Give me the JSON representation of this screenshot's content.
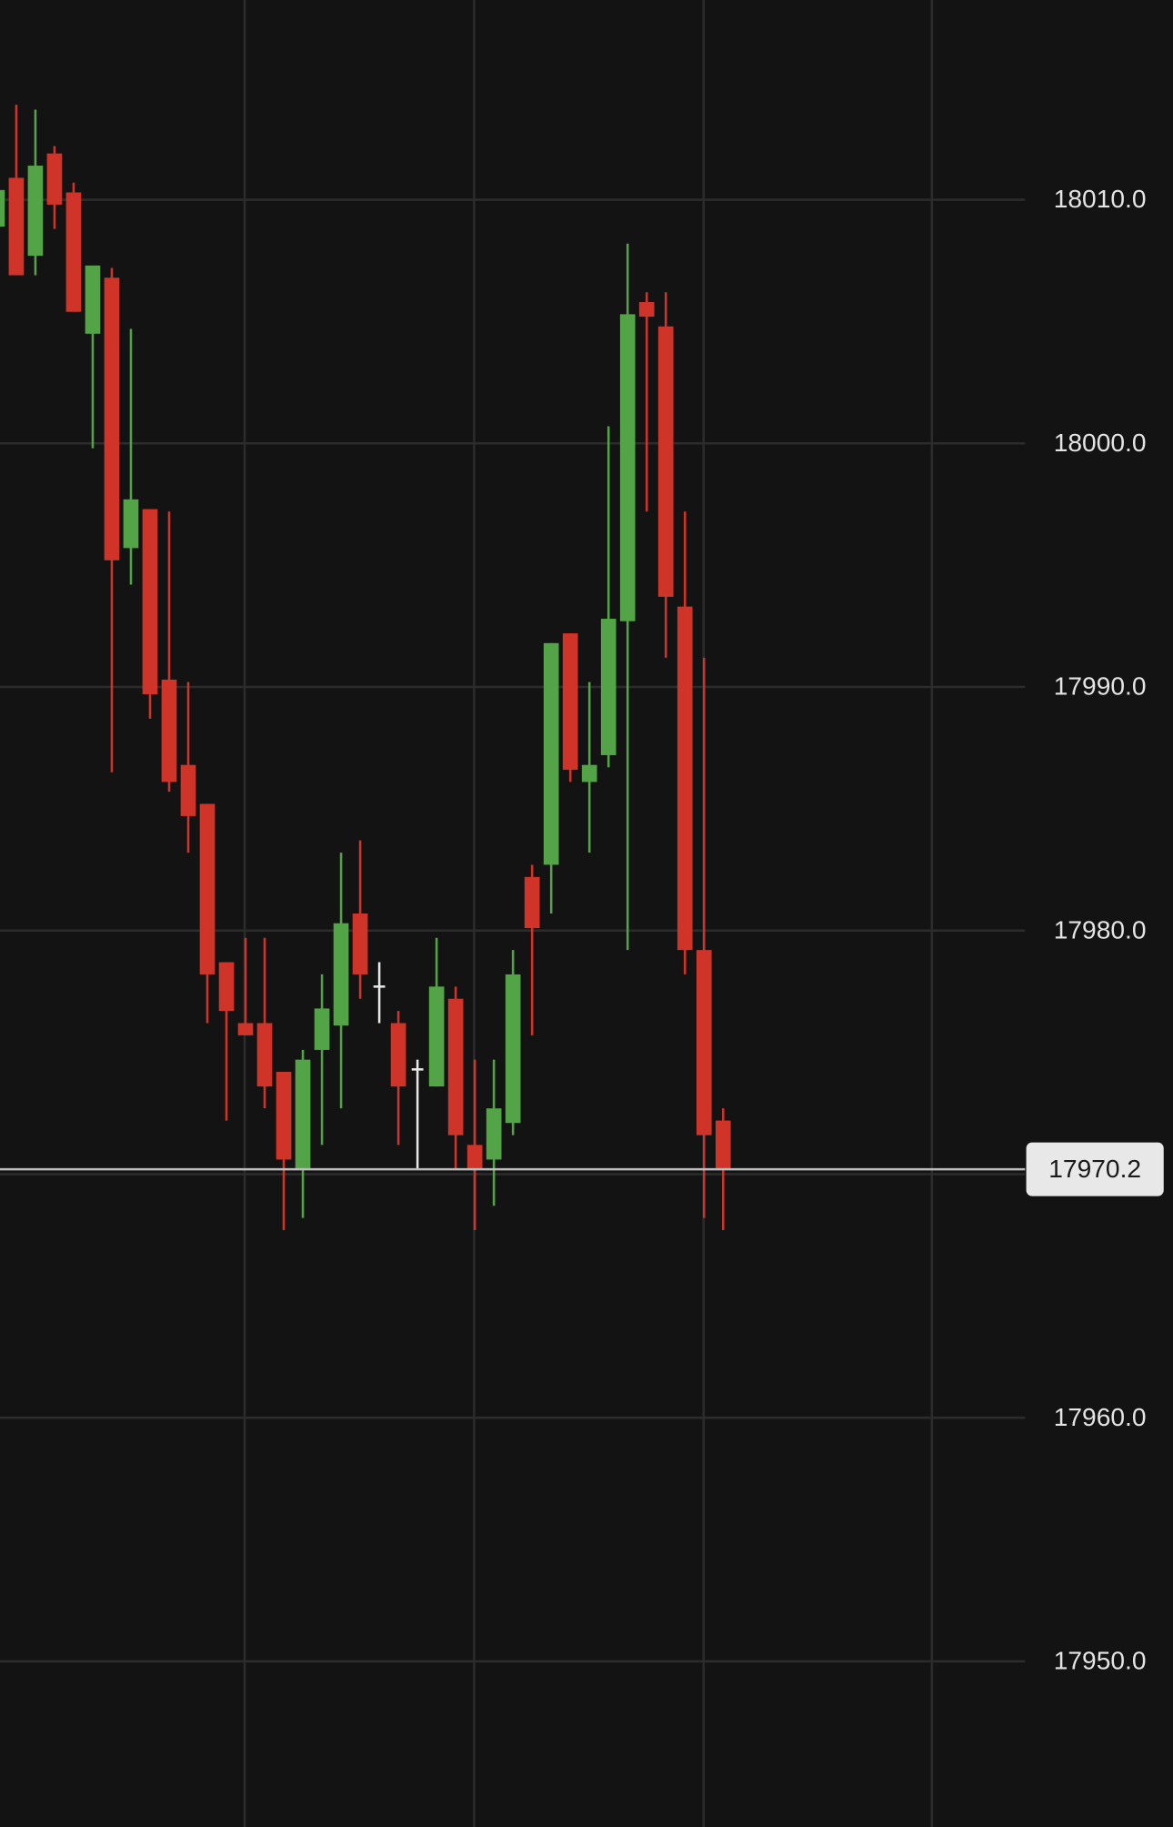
{
  "chart_data": {
    "type": "candlestick",
    "up_color": "#53a447",
    "down_color": "#d03429",
    "flat_color": "#e6e6e6",
    "grid": true,
    "ylim": [
      17943.2,
      18018.2
    ],
    "yticks": [
      {
        "value": 17950,
        "label": "17950.0"
      },
      {
        "value": 17960,
        "label": "17960.0"
      },
      {
        "value": 17970,
        "label": "17970.0"
      },
      {
        "value": 17980,
        "label": "17980.0"
      },
      {
        "value": 17990,
        "label": "17990.0"
      },
      {
        "value": 18000,
        "label": "18000.0"
      },
      {
        "value": 18010,
        "label": "18010.0"
      }
    ],
    "last_value": 17970.2,
    "open": [
      18008.9,
      18010.9,
      18007.7,
      18011.9,
      18010.3,
      18004.5,
      18006.8,
      17995.7,
      17997.3,
      17990.3,
      17986.8,
      17985.2,
      17978.7,
      17976.2,
      17976.2,
      17974.2,
      17970.2,
      17975.1,
      17976.1,
      17980.7,
      17977.7,
      17976.2,
      17974.3,
      17973.6,
      17977.2,
      17971.2,
      17970.6,
      17972.1,
      17982.2,
      17982.7,
      17992.2,
      17986.1,
      17987.2,
      17992.7,
      18005.8,
      18004.8,
      17993.3,
      17979.2,
      17972.2
    ],
    "high": [
      18011.0,
      18013.9,
      18013.7,
      18012.2,
      18010.7,
      18007.3,
      18007.2,
      18004.7,
      17997.3,
      17997.2,
      17990.2,
      17985.2,
      17978.7,
      17979.7,
      17979.7,
      17974.2,
      17975.1,
      17978.2,
      17983.2,
      17983.7,
      17978.7,
      17976.7,
      17974.7,
      17979.7,
      17977.7,
      17974.7,
      17974.7,
      17979.2,
      17982.7,
      17991.8,
      17992.2,
      17990.2,
      18000.7,
      18008.2,
      18006.2,
      18006.2,
      17997.2,
      17991.2,
      17972.7
    ],
    "low": [
      18008.5,
      18006.9,
      18006.9,
      18008.8,
      18005.4,
      17999.8,
      17986.5,
      17994.2,
      17988.7,
      17985.7,
      17983.2,
      17976.2,
      17972.2,
      17975.7,
      17972.7,
      17967.7,
      17968.2,
      17971.2,
      17972.7,
      17977.2,
      17976.2,
      17971.2,
      17970.2,
      17973.6,
      17970.2,
      17967.7,
      17968.7,
      17971.6,
      17975.7,
      17980.7,
      17986.1,
      17983.2,
      17986.7,
      17979.2,
      17997.2,
      17991.2,
      17978.2,
      17968.2,
      17967.7
    ],
    "close": [
      18010.4,
      18006.9,
      18011.4,
      18009.8,
      18005.4,
      18007.3,
      17995.2,
      17997.7,
      17989.7,
      17986.1,
      17984.7,
      17978.2,
      17976.7,
      17975.7,
      17973.6,
      17970.6,
      17974.7,
      17976.8,
      17980.3,
      17978.2,
      17977.7,
      17973.6,
      17974.3,
      17977.7,
      17971.6,
      17970.2,
      17972.7,
      17978.2,
      17980.1,
      17991.8,
      17986.6,
      17986.8,
      17992.8,
      18005.3,
      18005.2,
      17993.7,
      17979.2,
      17971.6,
      17970.2
    ]
  }
}
